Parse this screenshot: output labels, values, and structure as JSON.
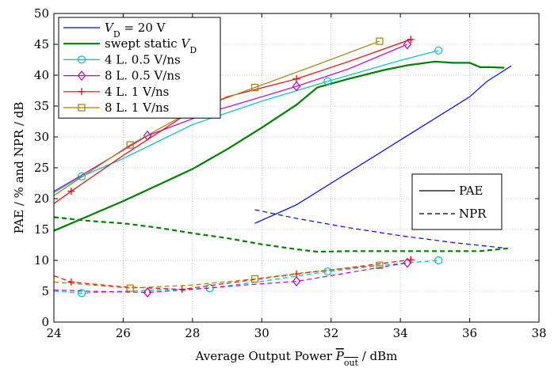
{
  "chart_data": {
    "type": "line",
    "title": "",
    "xlabel": "Average Output Power P_out / dBm",
    "xlabel_parts": {
      "before": "Average Output Power ",
      "symbol": "P",
      "sub": "out",
      "after": " / dBm"
    },
    "ylabel": "PAE / % and NPR / dB",
    "xlim": [
      24,
      38
    ],
    "ylim": [
      0,
      50
    ],
    "xticks": [
      24,
      26,
      28,
      30,
      32,
      34,
      36,
      38
    ],
    "yticks": [
      0,
      5,
      10,
      15,
      20,
      25,
      30,
      35,
      40,
      45,
      50
    ],
    "grid": true,
    "legend_position": "top-left",
    "series": [
      {
        "name": "V_D = 20 V",
        "label_html": {
          "main": "V",
          "sub": "D",
          "rest": " = 20 V"
        },
        "color": "#0000ff",
        "marker": "none",
        "pae": {
          "x": [
            29.8,
            31.0,
            32.0,
            33.0,
            34.0,
            35.0,
            36.0,
            36.5,
            37.2
          ],
          "y": [
            16.0,
            19.0,
            22.5,
            26.0,
            29.5,
            33.0,
            36.5,
            39.0,
            41.5
          ]
        },
        "npr": {
          "x": [
            29.8,
            31.0,
            32.5,
            34.0,
            35.5,
            37.0
          ],
          "y": [
            18.2,
            16.8,
            15.3,
            14.0,
            12.9,
            12.0
          ]
        }
      },
      {
        "name": "swept static V_D",
        "label_html": {
          "main": "swept static V",
          "sub": "D",
          "rest": ""
        },
        "color": "#008000",
        "marker": "none",
        "pae": {
          "x": [
            24.0,
            25.0,
            26.0,
            27.0,
            28.0,
            29.0,
            30.0,
            31.0,
            31.6,
            32.5,
            33.5,
            34.2,
            35.0,
            35.5,
            36.0,
            36.3,
            36.6,
            37.0
          ],
          "y": [
            14.8,
            17.2,
            19.6,
            22.2,
            24.8,
            28.0,
            31.5,
            35.2,
            38.0,
            39.4,
            40.8,
            41.6,
            42.2,
            42.0,
            42.0,
            41.3,
            41.3,
            41.2
          ]
        },
        "npr": {
          "x": [
            24.0,
            25.0,
            26.0,
            27.0,
            28.0,
            29.0,
            30.0,
            31.0,
            31.6,
            32.5,
            33.5,
            34.5,
            35.5,
            36.3,
            37.2
          ],
          "y": [
            17.0,
            16.4,
            16.0,
            15.3,
            14.4,
            13.6,
            12.6,
            11.8,
            11.4,
            11.5,
            11.5,
            11.5,
            11.5,
            11.5,
            12.0
          ]
        }
      },
      {
        "name": "4 L. 0.5 V/ns",
        "color": "#00bfbf",
        "marker": "circle",
        "pae": {
          "x": [
            24.0,
            24.8,
            26.0,
            28.0,
            30.0,
            31.9,
            34.0,
            35.1
          ],
          "y": [
            21.0,
            23.6,
            26.5,
            32.0,
            35.8,
            39.0,
            42.4,
            44.0
          ],
          "markers": [
            [
              24.8,
              23.6
            ],
            [
              31.9,
              39.0
            ],
            [
              35.1,
              44.0
            ]
          ]
        },
        "npr": {
          "x": [
            24.0,
            24.8,
            26.0,
            27.0,
            28.5,
            30.0,
            31.9,
            33.0,
            34.0,
            35.1
          ],
          "y": [
            5.0,
            4.7,
            5.0,
            5.2,
            5.5,
            6.6,
            8.2,
            8.9,
            9.5,
            10.0
          ],
          "markers": [
            [
              24.8,
              4.7
            ],
            [
              28.5,
              5.5
            ],
            [
              31.9,
              8.2
            ],
            [
              35.1,
              10.0
            ]
          ]
        }
      },
      {
        "name": "8 L. 0.5 V/ns",
        "color": "#bf00bf",
        "marker": "diamond",
        "pae": {
          "x": [
            24.0,
            24.8,
            26.7,
            28.5,
            30.0,
            31.0,
            32.5,
            34.2
          ],
          "y": [
            21.2,
            23.8,
            30.2,
            34.0,
            36.5,
            38.2,
            41.0,
            45.0
          ],
          "markers": [
            [
              26.7,
              30.2
            ],
            [
              31.0,
              38.2
            ],
            [
              34.2,
              45.0
            ]
          ]
        },
        "npr": {
          "x": [
            24.0,
            25.0,
            26.7,
            28.0,
            29.5,
            31.0,
            32.5,
            34.2
          ],
          "y": [
            5.2,
            5.0,
            4.8,
            5.3,
            6.0,
            6.6,
            8.0,
            9.6
          ],
          "markers": [
            [
              26.7,
              4.8
            ],
            [
              31.0,
              6.6
            ],
            [
              34.2,
              9.6
            ]
          ]
        }
      },
      {
        "name": "4 L. 1 V/ns",
        "color": "#ff0000",
        "marker": "plus",
        "pae": {
          "x": [
            24.0,
            24.5,
            26.0,
            27.7,
            29.0,
            31.0,
            32.5,
            34.3
          ],
          "y": [
            19.2,
            21.2,
            27.0,
            33.2,
            36.5,
            39.4,
            42.2,
            45.8
          ],
          "markers": [
            [
              24.5,
              21.2
            ],
            [
              31.0,
              39.4
            ],
            [
              34.3,
              45.8
            ]
          ]
        },
        "npr": {
          "x": [
            24.0,
            24.5,
            26.0,
            27.7,
            29.0,
            31.0,
            32.5,
            34.3
          ],
          "y": [
            7.5,
            6.5,
            5.7,
            5.3,
            6.3,
            7.8,
            8.8,
            10.1
          ],
          "markers": [
            [
              24.5,
              6.5
            ],
            [
              27.7,
              5.3
            ],
            [
              31.0,
              7.8
            ],
            [
              34.3,
              10.1
            ]
          ]
        }
      },
      {
        "name": "8 L. 1 V/ns",
        "color": "#a0800a",
        "marker": "square",
        "pae": {
          "x": [
            24.0,
            26.2,
            28.0,
            29.8,
            31.5,
            33.4
          ],
          "y": [
            20.5,
            28.7,
            34.3,
            38.0,
            41.5,
            45.5
          ],
          "markers": [
            [
              26.2,
              28.7
            ],
            [
              29.8,
              38.0
            ],
            [
              33.4,
              45.5
            ]
          ]
        },
        "npr": {
          "x": [
            24.0,
            26.2,
            28.0,
            29.8,
            31.5,
            33.4
          ],
          "y": [
            6.5,
            5.5,
            6.0,
            7.0,
            8.2,
            9.2
          ],
          "markers": [
            [
              26.2,
              5.5
            ],
            [
              29.8,
              7.0
            ],
            [
              33.4,
              9.2
            ]
          ]
        }
      }
    ],
    "style_legend": [
      {
        "label": "PAE",
        "dash": "solid"
      },
      {
        "label": "NPR",
        "dash": "dashed"
      }
    ]
  }
}
